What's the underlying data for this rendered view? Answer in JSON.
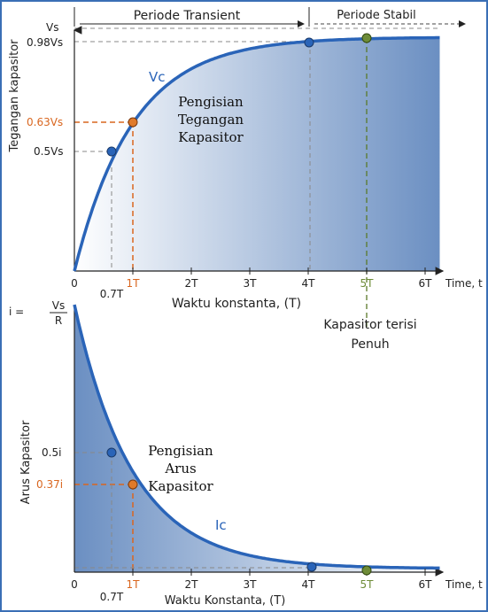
{
  "colors": {
    "curve": "#2a64b8",
    "fill_dark": "#6b8fc2",
    "fill_light": "#ffffff",
    "orange": "#d9661f",
    "green": "#5a7a2a",
    "blue_dot": "#2a64b8",
    "green_dot": "#6e8c38",
    "orange_dot": "#e07a2a",
    "grid": "#9a9a9a",
    "frame": "#3a6fb5"
  },
  "top": {
    "transient_label": "Periode Transient",
    "stable_label": "Periode Stabil",
    "y_axis_label": "Tegangan kapasitor",
    "y_vs": "Vs",
    "y_098": "0.98Vs",
    "y_063": "0.63Vs",
    "y_05": "0.5Vs",
    "curve_label": "Vc",
    "caption_line1": "Pengisian",
    "caption_line2": "Tegangan",
    "caption_line3": "Kapasitor",
    "x_ticks": [
      "0",
      "1T",
      "2T",
      "3T",
      "4T",
      "5T",
      "6T"
    ],
    "x_07": "0.7T",
    "x_unit": "Time, t",
    "x_axis_label": "Waktu konstanta, (T)",
    "note_line1": "Kapasitor terisi",
    "note_line2": "Penuh"
  },
  "bottom": {
    "formula_lhs": "i =",
    "formula_num": "Vs",
    "formula_den": "R",
    "y_axis_label": "Arus Kapasitor",
    "y_05": "0.5i",
    "y_037": "0.37i",
    "curve_label": "Ic",
    "caption_line1": "Pengisian",
    "caption_line2": "Arus",
    "caption_line3": "Kapasitor",
    "x_ticks": [
      "0",
      "1T",
      "2T",
      "3T",
      "4T",
      "5T",
      "6T"
    ],
    "x_07": "0.7T",
    "x_unit": "Time, t",
    "x_axis_label": "Waktu Konstanta, (T)"
  }
}
